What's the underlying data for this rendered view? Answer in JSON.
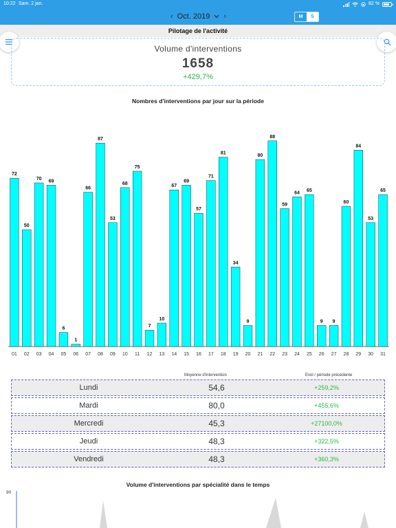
{
  "status_bar": {
    "time": "10:22",
    "date": "Sam. 2 jan.",
    "battery": "82 %",
    "battery_level": 0.82
  },
  "header": {
    "month": "Oct. 2019",
    "seg_month": "M",
    "seg_week": "S",
    "selected_segment": "M"
  },
  "page_title": "Pilotage de l'activité",
  "icons": {
    "menu": "hamburger-icon",
    "search": "search-icon",
    "prev": "chevron-left-icon",
    "next": "chevron-right-icon",
    "dropdown": "chevron-down-icon"
  },
  "colors": {
    "accent": "#2e9fe6",
    "bar": "#00ffff",
    "positive": "#2bb84a"
  },
  "kpi": {
    "title": "Volume d'interventions",
    "value": "1658",
    "evolution": "+429,7%"
  },
  "chart_data": [
    {
      "type": "bar",
      "title": "Nombres d'interventions par jour sur la période",
      "categories": [
        "01",
        "02",
        "03",
        "04",
        "05",
        "06",
        "07",
        "08",
        "09",
        "10",
        "11",
        "12",
        "13",
        "14",
        "15",
        "16",
        "17",
        "18",
        "19",
        "20",
        "21",
        "22",
        "23",
        "24",
        "25",
        "26",
        "27",
        "28",
        "29",
        "30",
        "31"
      ],
      "values": [
        72,
        50,
        70,
        69,
        6,
        1,
        66,
        87,
        53,
        68,
        75,
        7,
        10,
        67,
        69,
        57,
        71,
        81,
        34,
        9,
        80,
        88,
        59,
        64,
        65,
        9,
        9,
        60,
        84,
        53,
        65
      ],
      "ylim": [
        0,
        100
      ],
      "grid": false,
      "bar_color": "#00ffff",
      "data_labels": true
    },
    {
      "type": "area",
      "title": "Volume d'interventions par spécialité dans le temps",
      "y_ticks": [
        "90"
      ],
      "ylim": [
        0,
        90
      ],
      "grid": false
    }
  ],
  "table": {
    "headers": {
      "average": "Moyenne d'intervention",
      "evolution": "Evol / période précédente"
    },
    "rows": [
      {
        "day": "Lundi",
        "average": "54,6",
        "evolution": "+259,2%"
      },
      {
        "day": "Mardi",
        "average": "80,0",
        "evolution": "+455,6%"
      },
      {
        "day": "Mercredi",
        "average": "45,3",
        "evolution": "+27100,0%"
      },
      {
        "day": "Jeudi",
        "average": "48,3",
        "evolution": "+322,5%"
      },
      {
        "day": "Vendredi",
        "average": "48,3",
        "evolution": "+360,3%"
      }
    ]
  }
}
